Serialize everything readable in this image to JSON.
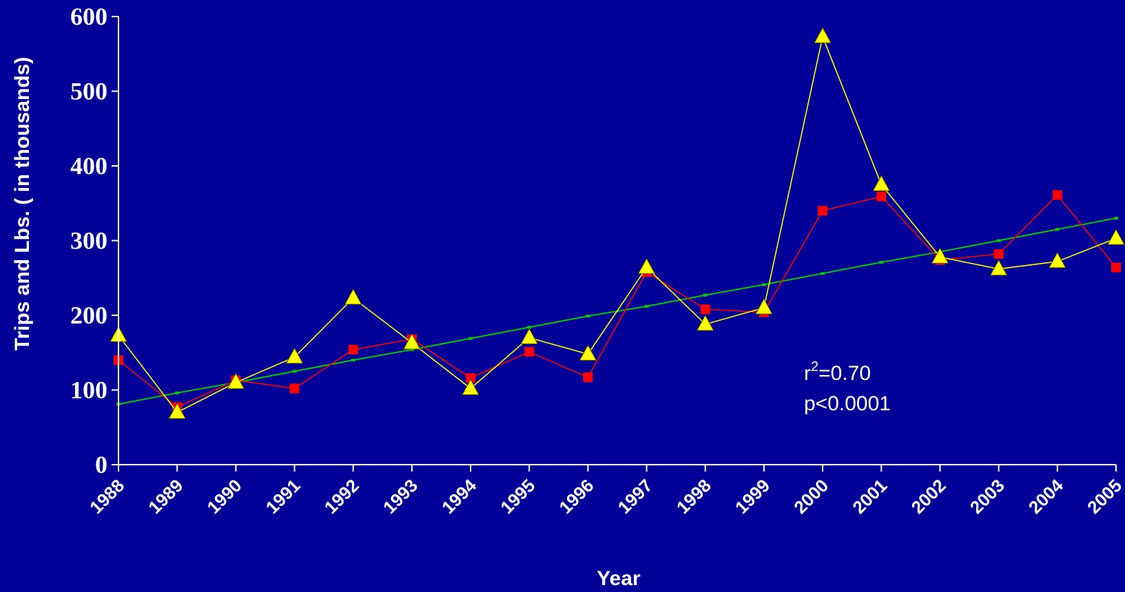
{
  "chart_data": {
    "type": "line",
    "xlabel": "Year",
    "ylabel": "Trips and Lbs. ( in thousands)",
    "ylim": [
      0,
      600
    ],
    "yticks": [
      0,
      100,
      200,
      300,
      400,
      500,
      600
    ],
    "x": [
      "1988",
      "1989",
      "1990",
      "1991",
      "1992",
      "1993",
      "1994",
      "1995",
      "1996",
      "1997",
      "1998",
      "1999",
      "2000",
      "2001",
      "2002",
      "2003",
      "2004",
      "2005"
    ],
    "series": [
      {
        "color": "#ff0000",
        "marker": "square",
        "values": [
          140,
          77,
          113,
          102,
          154,
          168,
          116,
          151,
          117,
          258,
          208,
          204,
          340,
          359,
          274,
          282,
          361,
          264
        ]
      },
      {
        "color": "#ffff00",
        "marker": "triangle",
        "values": [
          173,
          70,
          110,
          144,
          223,
          163,
          102,
          170,
          148,
          264,
          188,
          210,
          573,
          375,
          278,
          262,
          272,
          303
        ]
      },
      {
        "color": "#00cc00",
        "marker": "dot",
        "values": [
          81,
          96,
          110,
          125,
          140,
          154,
          169,
          184,
          199,
          212,
          227,
          241,
          256,
          271,
          285,
          300,
          315,
          330
        ]
      }
    ],
    "annotation": {
      "r_label": "r",
      "r_sup": "2",
      "r_value": "=0.70",
      "p_text": "p<0.0001"
    },
    "grid": false,
    "legend": "none"
  }
}
